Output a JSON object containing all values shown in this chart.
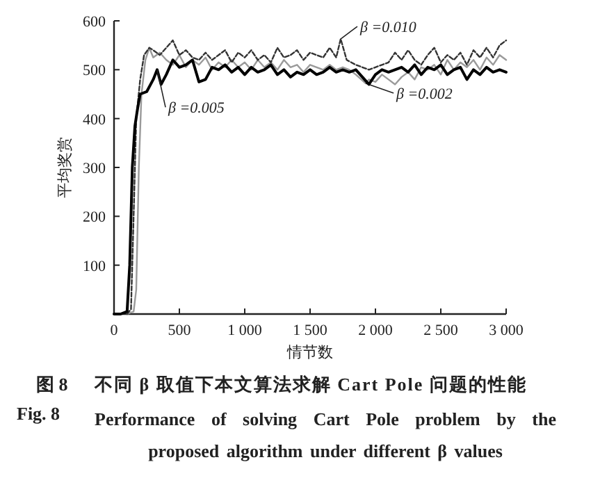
{
  "chart_data": {
    "type": "line",
    "xlabel": "情节数",
    "ylabel": "平均奖赏",
    "xlim": [
      0,
      3000
    ],
    "ylim": [
      0,
      600
    ],
    "xticks": [
      0,
      500,
      {
        "value": 1000,
        "label": "1 000"
      },
      {
        "value": 1500,
        "label": "1 500"
      },
      {
        "value": 2000,
        "label": "2 000"
      },
      {
        "value": 2500,
        "label": "2 500"
      },
      {
        "value": 3000,
        "label": "3 000"
      }
    ],
    "yticks": [
      100,
      200,
      300,
      400,
      500,
      600
    ],
    "grid": false,
    "marker": "none",
    "annotations": [
      "图 8",
      "不同 β 取值下本文算法求解 Cart Pole 问题的性能",
      "Fig. 8",
      "Performance of solving Cart Pole problem by the proposed algorithm under different β values"
    ],
    "series": [
      {
        "name": "β =0.002",
        "color": "#9a9a9a",
        "line_style": "solid",
        "x": [
          100,
          150,
          170,
          190,
          210,
          240,
          270,
          300,
          350,
          400,
          450,
          500,
          550,
          600,
          650,
          700,
          750,
          800,
          850,
          900,
          950,
          1000,
          1050,
          1100,
          1150,
          1200,
          1250,
          1300,
          1350,
          1400,
          1450,
          1500,
          1550,
          1600,
          1650,
          1700,
          1750,
          1800,
          1850,
          1926,
          1950,
          2000,
          2050,
          2100,
          2150,
          2200,
          2250,
          2300,
          2350,
          2400,
          2450,
          2500,
          2550,
          2600,
          2650,
          2700,
          2750,
          2800,
          2850,
          2900,
          2950,
          3000
        ],
        "values": [
          0,
          5,
          50,
          300,
          450,
          520,
          545,
          525,
          535,
          520,
          510,
          530,
          505,
          520,
          510,
          525,
          500,
          515,
          505,
          520,
          505,
          515,
          500,
          520,
          505,
          515,
          500,
          520,
          505,
          510,
          495,
          510,
          505,
          500,
          510,
          500,
          505,
          500,
          490,
          472,
          480,
          475,
          490,
          480,
          470,
          485,
          495,
          480,
          505,
          500,
          510,
          490,
          520,
          500,
          515,
          505,
          520,
          500,
          525,
          510,
          530,
          520
        ]
      },
      {
        "name": "β =0.010",
        "color": "#333333",
        "line_style": "dashed",
        "x": [
          100,
          130,
          150,
          170,
          200,
          230,
          270,
          300,
          350,
          400,
          450,
          500,
          550,
          600,
          650,
          700,
          750,
          800,
          850,
          900,
          950,
          1000,
          1050,
          1100,
          1150,
          1200,
          1250,
          1300,
          1350,
          1400,
          1450,
          1500,
          1550,
          1600,
          1650,
          1700,
          1734,
          1780,
          1850,
          1900,
          1950,
          2000,
          2050,
          2100,
          2150,
          2200,
          2250,
          2300,
          2350,
          2400,
          2450,
          2500,
          2550,
          2600,
          2650,
          2700,
          2750,
          2800,
          2850,
          2900,
          2950,
          3000
        ],
        "values": [
          0,
          10,
          200,
          400,
          480,
          530,
          545,
          540,
          530,
          545,
          560,
          530,
          540,
          525,
          520,
          535,
          520,
          530,
          540,
          515,
          535,
          525,
          540,
          520,
          530,
          515,
          545,
          525,
          530,
          540,
          520,
          535,
          530,
          525,
          545,
          525,
          563,
          520,
          510,
          505,
          500,
          505,
          510,
          515,
          535,
          520,
          540,
          520,
          510,
          530,
          545,
          515,
          530,
          520,
          535,
          510,
          540,
          525,
          545,
          525,
          550,
          560
        ]
      },
      {
        "name": "β =0.005",
        "color": "#000000",
        "line_style": "solid",
        "x": [
          0,
          50,
          100,
          120,
          140,
          160,
          180,
          200,
          250,
          300,
          330,
          360,
          400,
          450,
          500,
          550,
          600,
          650,
          700,
          750,
          800,
          850,
          900,
          950,
          1000,
          1050,
          1100,
          1150,
          1200,
          1250,
          1300,
          1350,
          1400,
          1450,
          1500,
          1550,
          1600,
          1650,
          1700,
          1750,
          1800,
          1850,
          1900,
          1950,
          2000,
          2050,
          2100,
          2150,
          2200,
          2250,
          2300,
          2350,
          2400,
          2450,
          2500,
          2550,
          2600,
          2650,
          2700,
          2750,
          2800,
          2850,
          2900,
          2950,
          3000
        ],
        "values": [
          0,
          0,
          5,
          100,
          300,
          385,
          420,
          450,
          455,
          480,
          500,
          470,
          490,
          520,
          505,
          510,
          520,
          475,
          480,
          505,
          500,
          510,
          495,
          505,
          490,
          505,
          495,
          500,
          510,
          490,
          500,
          485,
          495,
          490,
          500,
          490,
          495,
          505,
          495,
          500,
          495,
          500,
          485,
          470,
          490,
          500,
          495,
          500,
          505,
          495,
          510,
          490,
          505,
          500,
          510,
          490,
          500,
          505,
          480,
          500,
          490,
          505,
          495,
          500,
          495
        ]
      }
    ]
  }
}
